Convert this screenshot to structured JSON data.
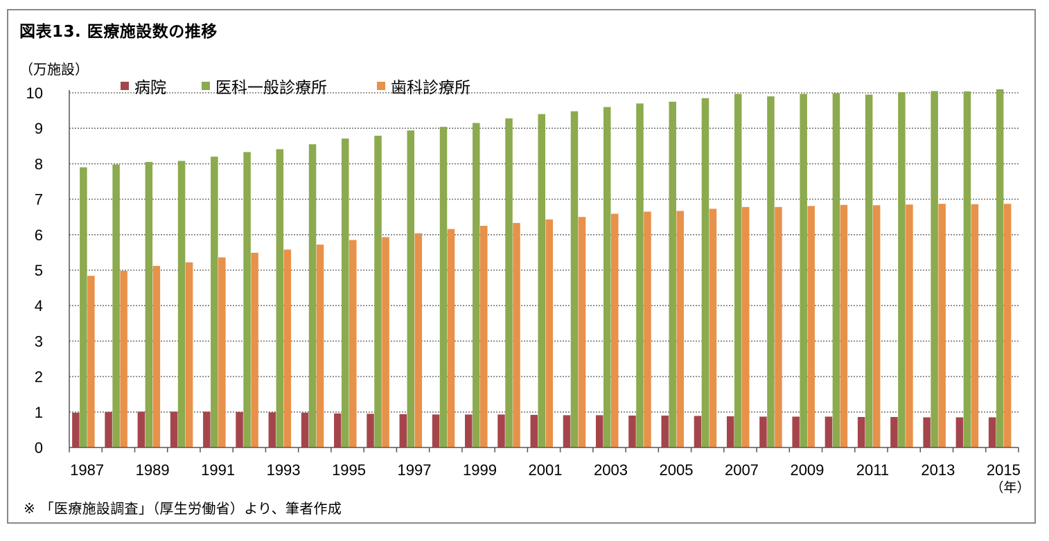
{
  "figure": {
    "title": "図表13. 医療施設数の推移",
    "unit_label": "（万施設）",
    "note": "※ 「医療施設調査」（厚生労働省）より、筆者作成"
  },
  "chart_data": {
    "type": "bar",
    "title": "図表13. 医療施設数の推移",
    "ylabel": "（万施設）",
    "xlabel": "（年）",
    "ylim": [
      0,
      10
    ],
    "yticks": [
      0,
      1,
      2,
      3,
      4,
      5,
      6,
      7,
      8,
      9,
      10
    ],
    "grid": true,
    "legend_position": "top",
    "categories": [
      "1987",
      "1988",
      "1989",
      "1990",
      "1991",
      "1992",
      "1993",
      "1994",
      "1995",
      "1996",
      "1997",
      "1998",
      "1999",
      "2000",
      "2001",
      "2002",
      "2003",
      "2004",
      "2005",
      "2006",
      "2007",
      "2008",
      "2009",
      "2010",
      "2011",
      "2012",
      "2013",
      "2014",
      "2015"
    ],
    "x_tick_labels": [
      "1987",
      "1989",
      "1991",
      "1993",
      "1995",
      "1997",
      "1999",
      "2001",
      "2003",
      "2005",
      "2007",
      "2009",
      "2011",
      "2013",
      "2015"
    ],
    "series": [
      {
        "name": "病院",
        "color": "#A5454B",
        "values": [
          0.98,
          1.0,
          1.01,
          1.01,
          1.01,
          1.0,
          0.99,
          0.98,
          0.96,
          0.95,
          0.94,
          0.93,
          0.93,
          0.93,
          0.92,
          0.91,
          0.91,
          0.9,
          0.9,
          0.89,
          0.88,
          0.87,
          0.87,
          0.87,
          0.86,
          0.86,
          0.85,
          0.85,
          0.85
        ]
      },
      {
        "name": "医科一般診療所",
        "color": "#8CAA4E",
        "values": [
          7.9,
          7.98,
          8.05,
          8.08,
          8.2,
          8.33,
          8.41,
          8.55,
          8.71,
          8.79,
          8.94,
          9.04,
          9.15,
          9.28,
          9.4,
          9.48,
          9.6,
          9.7,
          9.75,
          9.85,
          9.97,
          9.9,
          9.97,
          9.99,
          9.95,
          10.02,
          10.05,
          10.04,
          10.1
        ]
      },
      {
        "name": "歯科診療所",
        "color": "#E8914A",
        "values": [
          4.84,
          4.98,
          5.12,
          5.22,
          5.36,
          5.49,
          5.58,
          5.72,
          5.85,
          5.93,
          6.04,
          6.16,
          6.25,
          6.33,
          6.43,
          6.5,
          6.59,
          6.65,
          6.67,
          6.73,
          6.78,
          6.78,
          6.81,
          6.84,
          6.83,
          6.85,
          6.87,
          6.86,
          6.87
        ]
      }
    ]
  }
}
